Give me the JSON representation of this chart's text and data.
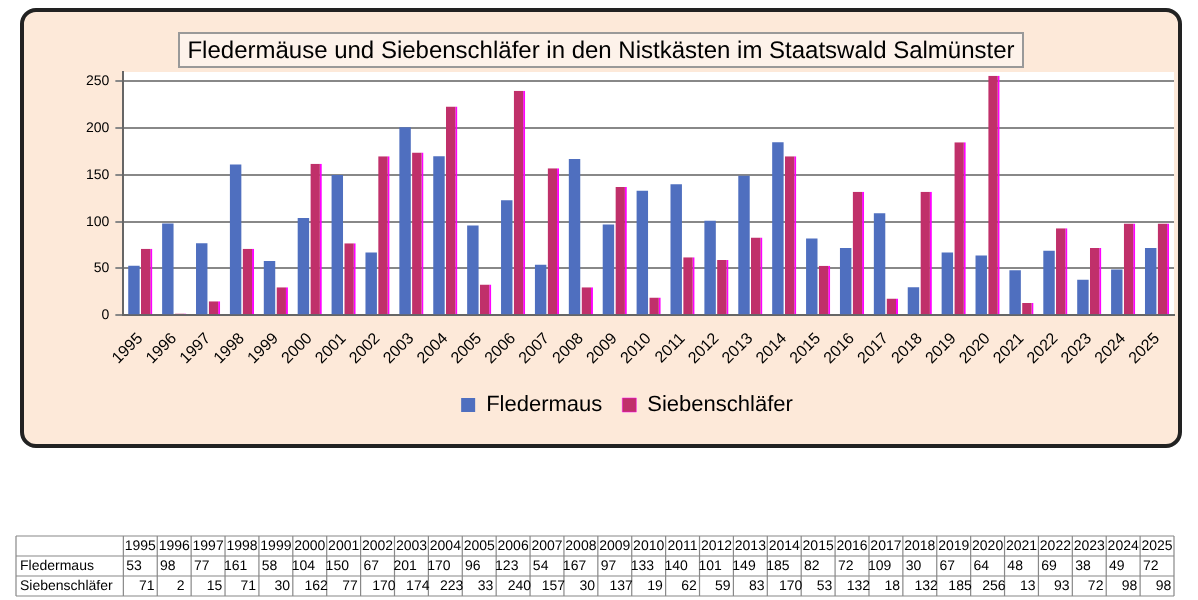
{
  "chart_data": {
    "type": "bar",
    "title": "Fledermäuse und Siebenschläfer in den Nistkästen im Staatswald Salmünster",
    "categories": [
      "1995",
      "1996",
      "1997",
      "1998",
      "1999",
      "2000",
      "2001",
      "2002",
      "2003",
      "2004",
      "2005",
      "2006",
      "2007",
      "2008",
      "2009",
      "2010",
      "2011",
      "2012",
      "2013",
      "2014",
      "2015",
      "2016",
      "2017",
      "2018",
      "2019",
      "2020",
      "2021",
      "2022",
      "2023",
      "2024",
      "2025"
    ],
    "series": [
      {
        "name": "Fledermaus",
        "color": "#4f6fbf",
        "values": [
          53,
          98,
          77,
          161,
          58,
          104,
          150,
          67,
          201,
          170,
          96,
          123,
          54,
          167,
          97,
          133,
          140,
          101,
          149,
          185,
          82,
          72,
          109,
          30,
          67,
          64,
          48,
          69,
          38,
          49,
          72
        ]
      },
      {
        "name": "Siebenschläfer",
        "color": "#c0306a",
        "values": [
          71,
          2,
          15,
          71,
          30,
          162,
          77,
          170,
          174,
          223,
          33,
          240,
          157,
          30,
          137,
          19,
          62,
          59,
          83,
          170,
          53,
          132,
          18,
          132,
          185,
          256,
          13,
          93,
          72,
          98,
          98
        ]
      }
    ],
    "ylim": [
      0,
      260
    ],
    "yticks": [
      0,
      50,
      100,
      150,
      200,
      250
    ],
    "grid": "y",
    "legend": "bottom",
    "data_labels": true
  }
}
